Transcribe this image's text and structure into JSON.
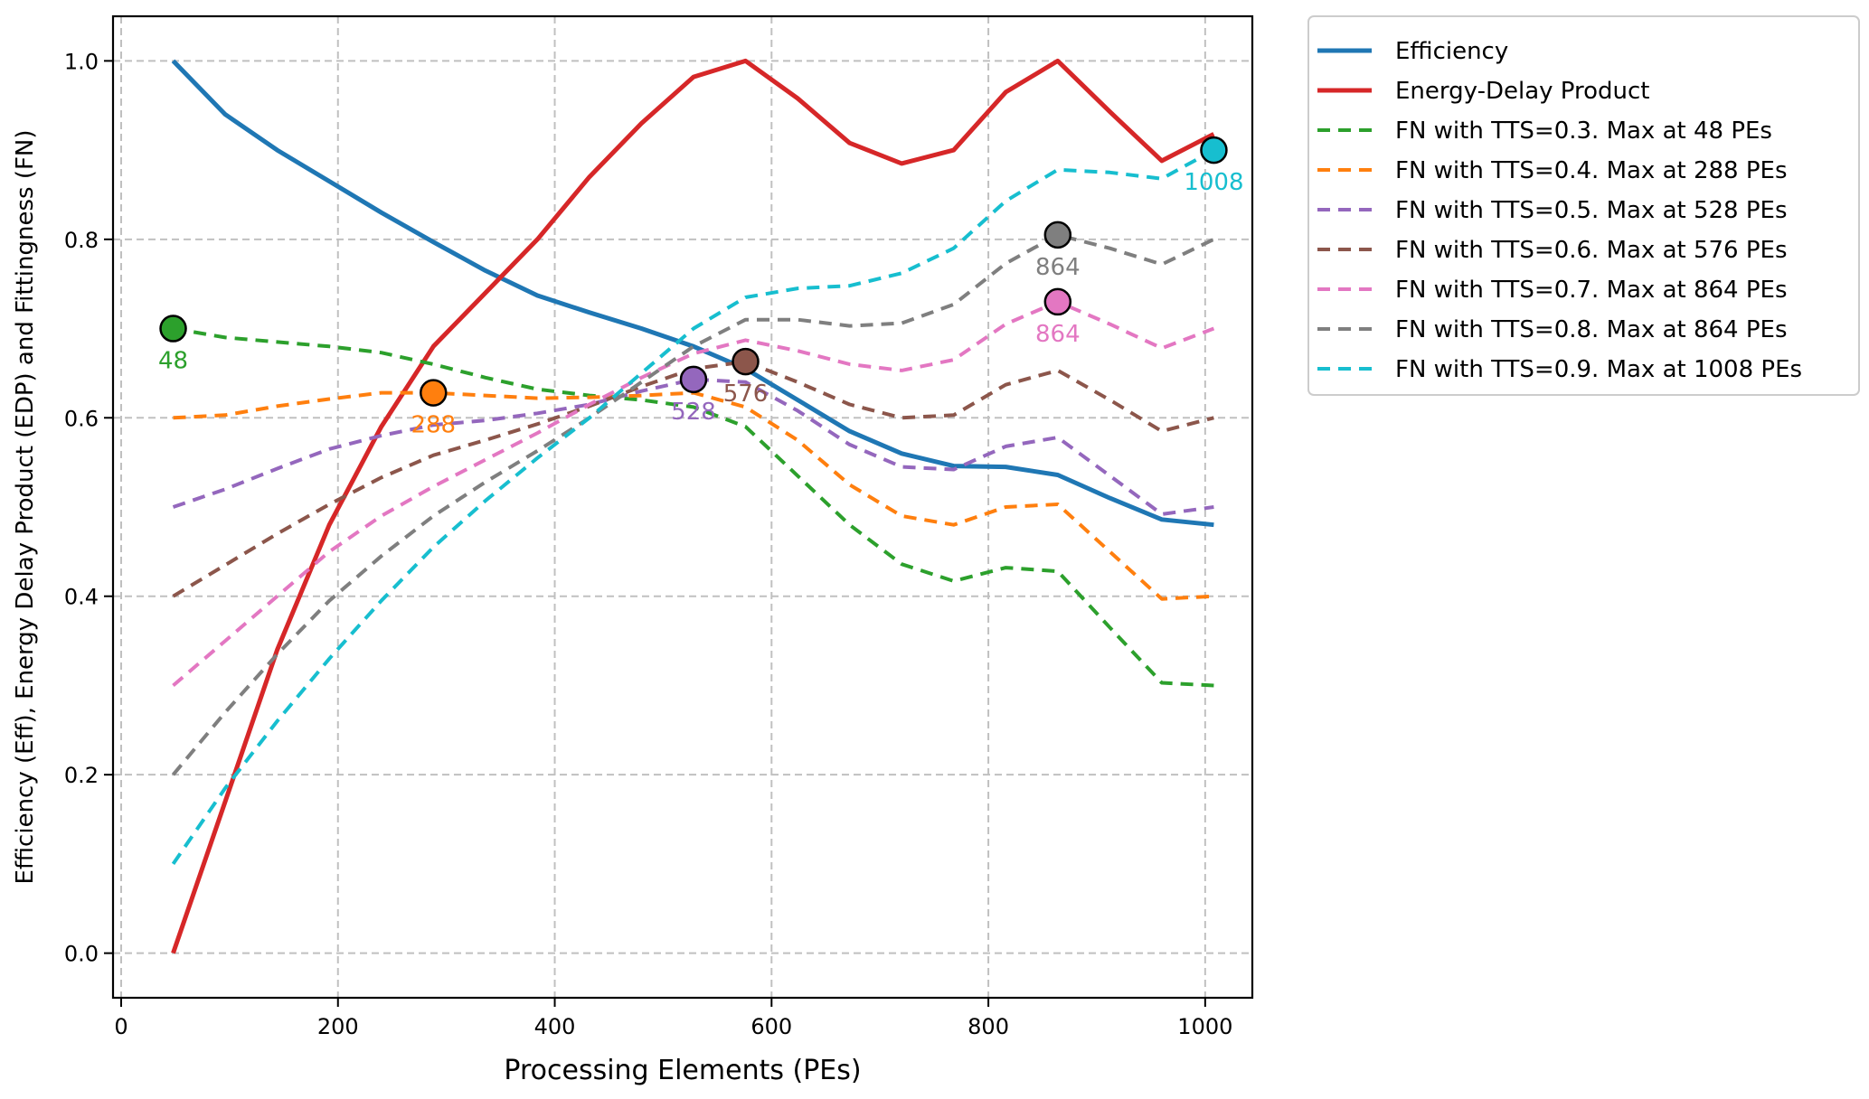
{
  "chart_data": {
    "type": "line",
    "title": "",
    "xlabel": "Processing Elements (PEs)",
    "ylabel": "Efficiency (Eff), Energy Delay Product (EDP) and Fittingness (FN)",
    "xlim": [
      -7.5,
      1043.5
    ],
    "ylim": [
      -0.05,
      1.05
    ],
    "xticks": [
      0,
      200,
      400,
      600,
      800,
      1000
    ],
    "xtick_labels": [
      "0",
      "200",
      "400",
      "600",
      "800",
      "1000"
    ],
    "yticks": [
      0.0,
      0.2,
      0.4,
      0.6,
      0.8,
      1.0
    ],
    "ytick_labels": [
      "0.0",
      "0.2",
      "0.4",
      "0.6",
      "0.8",
      "1.0"
    ],
    "grid": true,
    "legend_placement": "outside-top-right",
    "x": [
      48,
      96,
      144,
      192,
      240,
      288,
      336,
      384,
      432,
      480,
      528,
      576,
      624,
      672,
      720,
      768,
      816,
      864,
      912,
      960,
      1008
    ],
    "series": [
      {
        "name": "Efficiency",
        "color": "#1f77b4",
        "style": "solid",
        "values": [
          1.0,
          0.94,
          0.9,
          0.865,
          0.83,
          0.797,
          0.765,
          0.737,
          0.718,
          0.7,
          0.68,
          0.655,
          0.62,
          0.585,
          0.56,
          0.546,
          0.545,
          0.536,
          0.51,
          0.486,
          0.48
        ]
      },
      {
        "name": "Energy-Delay Product",
        "color": "#d62728",
        "style": "solid",
        "values": [
          0.0,
          0.17,
          0.34,
          0.48,
          0.59,
          0.68,
          0.74,
          0.8,
          0.87,
          0.93,
          0.982,
          1.0,
          0.958,
          0.908,
          0.885,
          0.9,
          0.965,
          1.0,
          0.943,
          0.888,
          0.918
        ]
      },
      {
        "name": "FN with TTS=0.3. Max at 48 PEs",
        "color": "#2ca02c",
        "style": "dashed",
        "values": [
          0.7,
          0.69,
          0.685,
          0.68,
          0.673,
          0.66,
          0.645,
          0.632,
          0.625,
          0.62,
          0.612,
          0.59,
          0.535,
          0.48,
          0.436,
          0.417,
          0.432,
          0.428,
          0.365,
          0.303,
          0.3
        ],
        "max": {
          "x": 48,
          "y": 0.7,
          "label": "48"
        }
      },
      {
        "name": "FN with TTS=0.4. Max at 288 PEs",
        "color": "#ff7f0e",
        "style": "dashed",
        "values": [
          0.6,
          0.603,
          0.613,
          0.621,
          0.628,
          0.628,
          0.625,
          0.622,
          0.623,
          0.625,
          0.628,
          0.612,
          0.575,
          0.525,
          0.49,
          0.48,
          0.5,
          0.503,
          0.45,
          0.397,
          0.4
        ],
        "max": {
          "x": 288,
          "y": 0.628,
          "label": "288"
        }
      },
      {
        "name": "FN with TTS=0.5. Max at 528 PEs",
        "color": "#9467bd",
        "style": "dashed",
        "values": [
          0.5,
          0.52,
          0.543,
          0.565,
          0.58,
          0.592,
          0.597,
          0.605,
          0.615,
          0.63,
          0.643,
          0.64,
          0.608,
          0.57,
          0.545,
          0.542,
          0.568,
          0.578,
          0.535,
          0.492,
          0.5
        ],
        "max": {
          "x": 528,
          "y": 0.643,
          "label": "528"
        }
      },
      {
        "name": "FN with TTS=0.6. Max at 576 PEs",
        "color": "#8c564b",
        "style": "dashed",
        "values": [
          0.4,
          0.435,
          0.47,
          0.503,
          0.533,
          0.558,
          0.575,
          0.593,
          0.613,
          0.635,
          0.655,
          0.663,
          0.64,
          0.615,
          0.6,
          0.603,
          0.637,
          0.653,
          0.62,
          0.585,
          0.6
        ],
        "max": {
          "x": 576,
          "y": 0.663,
          "label": "576"
        }
      },
      {
        "name": "FN with TTS=0.7. Max at 864 PEs",
        "color": "#e377c2",
        "style": "dashed",
        "values": [
          0.3,
          0.35,
          0.4,
          0.45,
          0.49,
          0.523,
          0.553,
          0.583,
          0.615,
          0.645,
          0.672,
          0.687,
          0.675,
          0.66,
          0.653,
          0.665,
          0.705,
          0.73,
          0.705,
          0.678,
          0.7
        ],
        "max": {
          "x": 864,
          "y": 0.73,
          "label": "864"
        }
      },
      {
        "name": "FN with TTS=0.8. Max at 864 PEs",
        "color": "#7f7f7f",
        "style": "dashed",
        "values": [
          0.2,
          0.27,
          0.335,
          0.395,
          0.445,
          0.49,
          0.528,
          0.563,
          0.6,
          0.64,
          0.68,
          0.71,
          0.71,
          0.703,
          0.706,
          0.727,
          0.773,
          0.805,
          0.79,
          0.772,
          0.8
        ],
        "max": {
          "x": 864,
          "y": 0.805,
          "label": "864"
        }
      },
      {
        "name": "FN with TTS=0.9. Max at 1008 PEs",
        "color": "#17becf",
        "style": "dashed",
        "values": [
          0.1,
          0.185,
          0.26,
          0.33,
          0.395,
          0.455,
          0.507,
          0.555,
          0.6,
          0.65,
          0.7,
          0.735,
          0.745,
          0.748,
          0.762,
          0.79,
          0.843,
          0.878,
          0.875,
          0.868,
          0.9
        ],
        "max": {
          "x": 1008,
          "y": 0.9,
          "label": "1008"
        }
      }
    ]
  }
}
